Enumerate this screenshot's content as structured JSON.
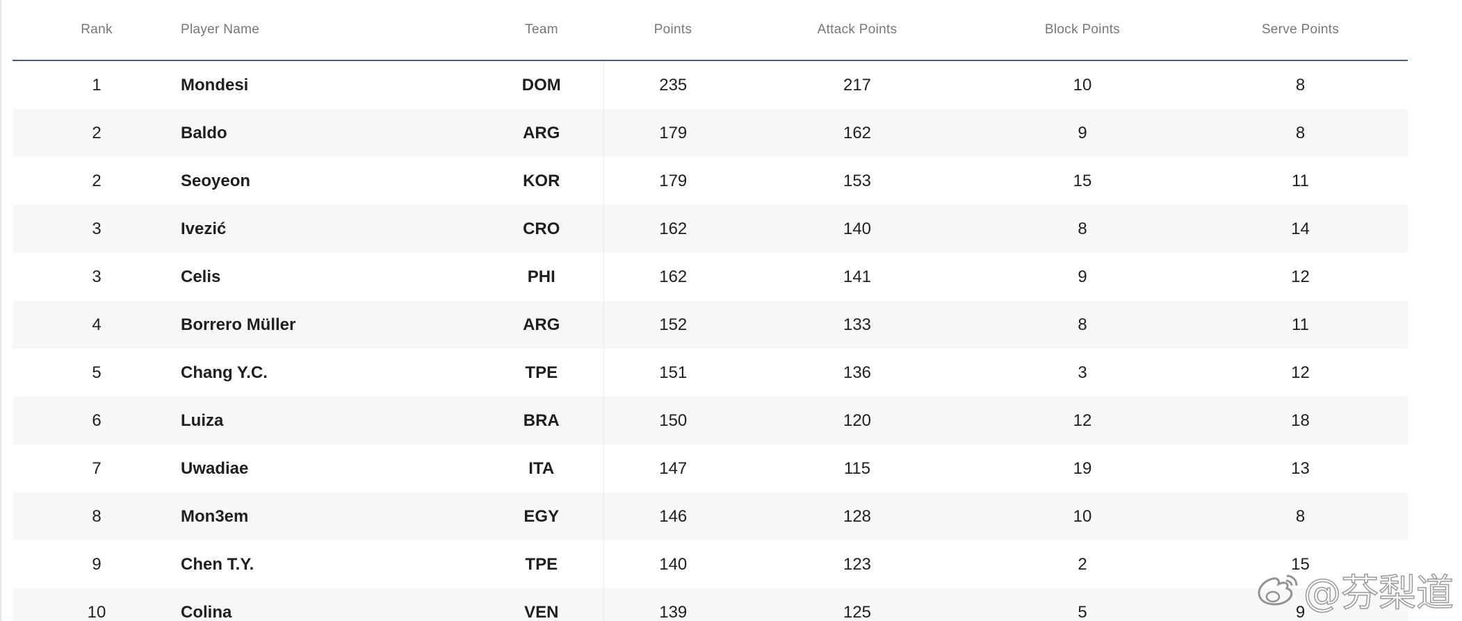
{
  "table": {
    "columns": [
      "Rank",
      "Player Name",
      "Team",
      "Points",
      "Attack Points",
      "Block Points",
      "Serve Points"
    ],
    "rows": [
      {
        "rank": "1",
        "name": "Mondesi",
        "team": "DOM",
        "points": "235",
        "attack": "217",
        "block": "10",
        "serve": "8"
      },
      {
        "rank": "2",
        "name": "Baldo",
        "team": "ARG",
        "points": "179",
        "attack": "162",
        "block": "9",
        "serve": "8"
      },
      {
        "rank": "2",
        "name": "Seoyeon",
        "team": "KOR",
        "points": "179",
        "attack": "153",
        "block": "15",
        "serve": "11"
      },
      {
        "rank": "3",
        "name": "Ivezić",
        "team": "CRO",
        "points": "162",
        "attack": "140",
        "block": "8",
        "serve": "14"
      },
      {
        "rank": "3",
        "name": "Celis",
        "team": "PHI",
        "points": "162",
        "attack": "141",
        "block": "9",
        "serve": "12"
      },
      {
        "rank": "4",
        "name": "Borrero Müller",
        "team": "ARG",
        "points": "152",
        "attack": "133",
        "block": "8",
        "serve": "11"
      },
      {
        "rank": "5",
        "name": "Chang Y.C.",
        "team": "TPE",
        "points": "151",
        "attack": "136",
        "block": "3",
        "serve": "12"
      },
      {
        "rank": "6",
        "name": "Luiza",
        "team": "BRA",
        "points": "150",
        "attack": "120",
        "block": "12",
        "serve": "18"
      },
      {
        "rank": "7",
        "name": "Uwadiae",
        "team": "ITA",
        "points": "147",
        "attack": "115",
        "block": "19",
        "serve": "13"
      },
      {
        "rank": "8",
        "name": "Mon3em",
        "team": "EGY",
        "points": "146",
        "attack": "128",
        "block": "10",
        "serve": "8"
      },
      {
        "rank": "9",
        "name": "Chen T.Y.",
        "team": "TPE",
        "points": "140",
        "attack": "123",
        "block": "2",
        "serve": "15"
      },
      {
        "rank": "10",
        "name": "Colina",
        "team": "VEN",
        "points": "139",
        "attack": "125",
        "block": "5",
        "serve": "9"
      }
    ]
  },
  "watermark": {
    "text": "@芬梨道",
    "icon": "weibo-logo-icon"
  }
}
